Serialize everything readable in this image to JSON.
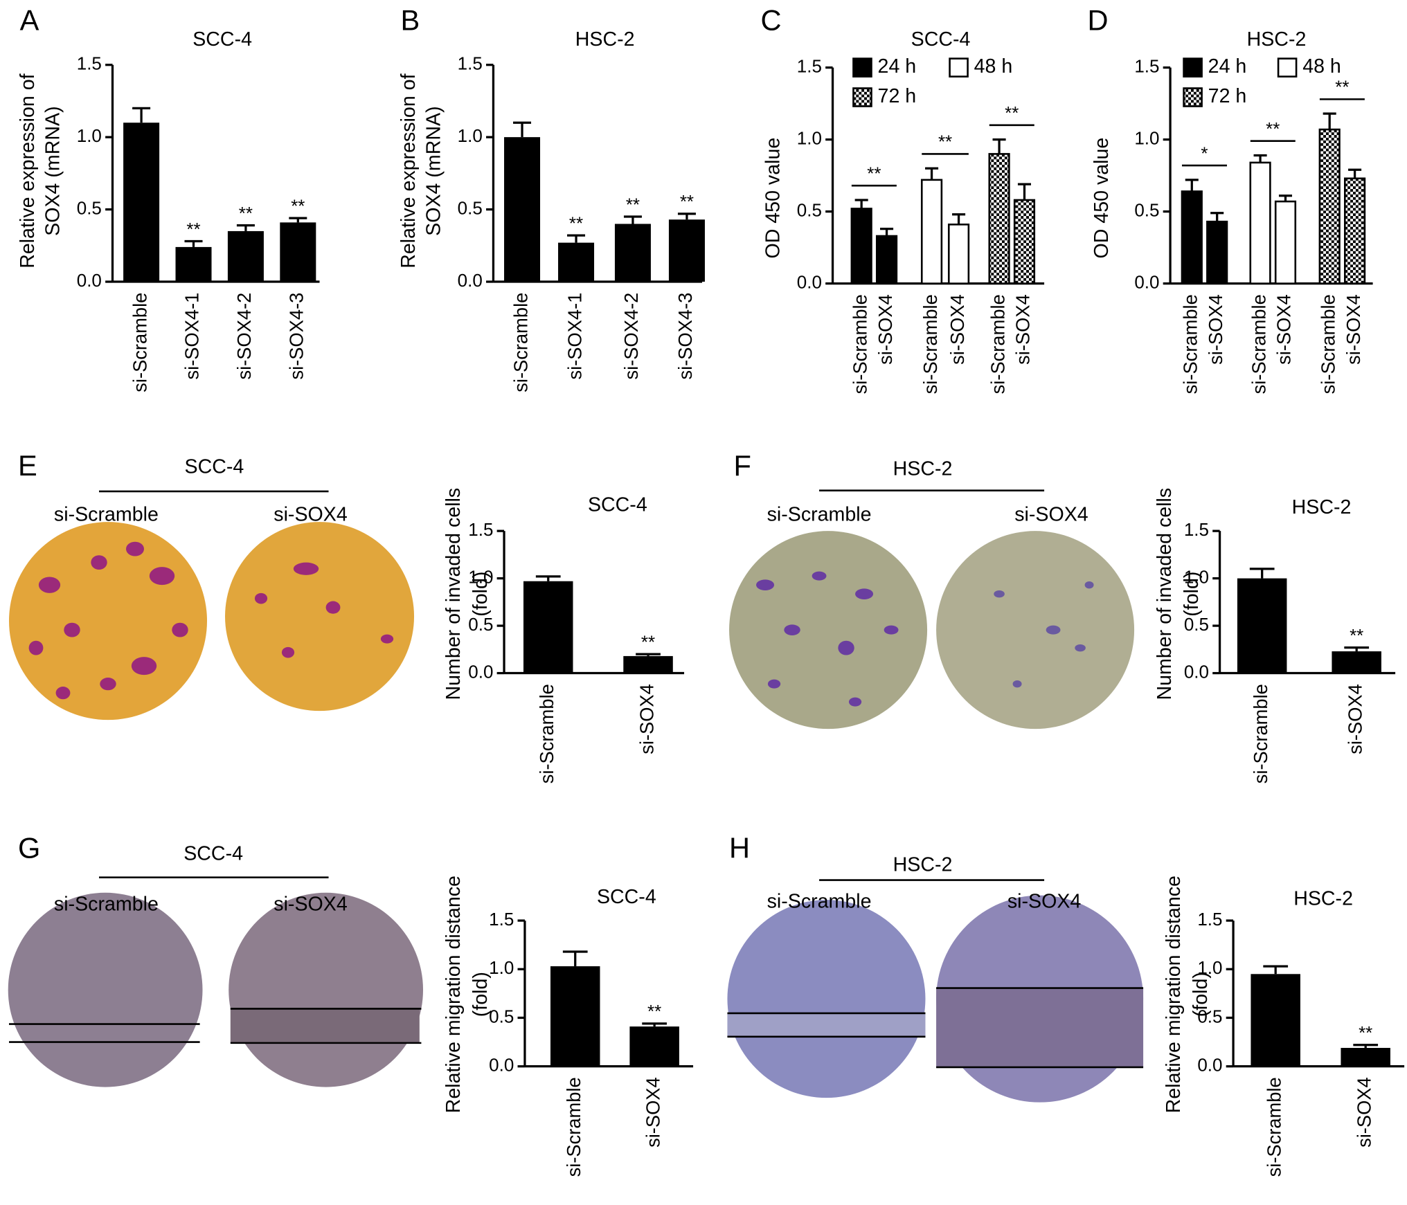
{
  "chart_data": [
    {
      "panel": "A",
      "type": "bar",
      "title": "SCC-4",
      "ylabel": [
        "Relative expression of",
        "SOX4 (mRNA)"
      ],
      "categories": [
        "si-Scramble",
        "si-SOX4-1",
        "si-SOX4-2",
        "si-SOX4-3"
      ],
      "values": [
        1.1,
        0.24,
        0.35,
        0.41
      ],
      "errors": [
        0.1,
        0.04,
        0.04,
        0.03
      ],
      "annotations": [
        null,
        "**",
        "**",
        "**"
      ],
      "color": "#000000",
      "ylim": [
        0,
        1.5
      ],
      "yticks": [
        {
          "value": 0,
          "label": "0.0"
        },
        {
          "value": 0.5,
          "label": "0.5"
        },
        {
          "value": 1,
          "label": "1.0"
        },
        {
          "value": 1.5,
          "label": "1.5"
        }
      ]
    },
    {
      "panel": "B",
      "type": "bar",
      "title": "HSC-2",
      "ylabel": [
        "Relative expression of",
        "SOX4 (mRNA)"
      ],
      "categories": [
        "si-Scramble",
        "si-SOX4-1",
        "si-SOX4-2",
        "si-SOX4-3"
      ],
      "values": [
        1.0,
        0.27,
        0.4,
        0.43
      ],
      "errors": [
        0.1,
        0.05,
        0.05,
        0.04
      ],
      "annotations": [
        null,
        "**",
        "**",
        "**"
      ],
      "color": "#000000",
      "ylim": [
        0,
        1.5
      ],
      "yticks": [
        {
          "value": 0,
          "label": "0.0"
        },
        {
          "value": 0.5,
          "label": "0.5"
        },
        {
          "value": 1,
          "label": "1.0"
        },
        {
          "value": 1.5,
          "label": "1.5"
        }
      ]
    },
    {
      "panel": "C",
      "type": "grouped_bar",
      "title": "SCC-4",
      "ylabel": [
        "OD 450 value"
      ],
      "categories": [
        "si-Scramble",
        "si-SOX4"
      ],
      "series": [
        {
          "name": "24 h",
          "color": "#000000",
          "values": [
            0.52,
            0.33
          ],
          "errors": [
            0.06,
            0.05
          ]
        },
        {
          "name": "48 h",
          "color": "#ffffff",
          "values": [
            0.72,
            0.41
          ],
          "errors": [
            0.08,
            0.07
          ]
        },
        {
          "name": "72 h",
          "color": "#000000",
          "pattern": "checker",
          "values": [
            0.9,
            0.58
          ],
          "errors": [
            0.1,
            0.11
          ]
        }
      ],
      "significance": [
        "**",
        "**",
        "**"
      ],
      "ylim": [
        0,
        1.5
      ],
      "yticks": [
        {
          "value": 0,
          "label": "0.0"
        },
        {
          "value": 0.5,
          "label": "0.5"
        },
        {
          "value": 1,
          "label": "1.0"
        },
        {
          "value": 1.5,
          "label": "1.5"
        }
      ]
    },
    {
      "panel": "D",
      "type": "grouped_bar",
      "title": "HSC-2",
      "ylabel": [
        "OD 450 value"
      ],
      "categories": [
        "si-Scramble",
        "si-SOX4"
      ],
      "series": [
        {
          "name": "24 h",
          "color": "#000000",
          "values": [
            0.64,
            0.43
          ],
          "errors": [
            0.08,
            0.06
          ]
        },
        {
          "name": "48 h",
          "color": "#ffffff",
          "values": [
            0.84,
            0.57
          ],
          "errors": [
            0.05,
            0.04
          ]
        },
        {
          "name": "72 h",
          "color": "#000000",
          "pattern": "checker",
          "values": [
            1.07,
            0.73
          ],
          "errors": [
            0.11,
            0.06
          ]
        }
      ],
      "significance": [
        "*",
        "**",
        "**"
      ],
      "ylim": [
        0,
        1.5
      ],
      "yticks": [
        {
          "value": 0,
          "label": "0.0"
        },
        {
          "value": 0.5,
          "label": "0.5"
        },
        {
          "value": 1,
          "label": "1.0"
        },
        {
          "value": 1.5,
          "label": "1.5"
        }
      ]
    },
    {
      "panel": "E",
      "type": "bar",
      "title": "SCC-4",
      "ylabel": [
        "Number of invaded cells",
        "(fold)"
      ],
      "categories": [
        "si-Scramble",
        "si-SOX4"
      ],
      "values": [
        0.97,
        0.18
      ],
      "errors": [
        0.05,
        0.02
      ],
      "annotations": [
        null,
        "**"
      ],
      "color": "#000000",
      "ylim": [
        0,
        1.5
      ],
      "yticks": [
        {
          "value": 0,
          "label": "0.0"
        },
        {
          "value": 0.5,
          "label": "0.5"
        },
        {
          "value": 1,
          "label": "1.0"
        },
        {
          "value": 1.5,
          "label": "1.5"
        }
      ],
      "images": {
        "title": "SCC-4",
        "labels": [
          "si-Scramble",
          "si-SOX4"
        ]
      }
    },
    {
      "panel": "F",
      "type": "bar",
      "title": "HSC-2",
      "ylabel": [
        "Number of invaded cells",
        "(fold)"
      ],
      "categories": [
        "si-Scramble",
        "si-SOX4"
      ],
      "values": [
        1.0,
        0.23
      ],
      "errors": [
        0.1,
        0.04
      ],
      "annotations": [
        null,
        "**"
      ],
      "color": "#000000",
      "ylim": [
        0,
        1.5
      ],
      "yticks": [
        {
          "value": 0,
          "label": "0.0"
        },
        {
          "value": 0.5,
          "label": "0.5"
        },
        {
          "value": 1,
          "label": "1.0"
        },
        {
          "value": 1.5,
          "label": "1.5"
        }
      ],
      "images": {
        "title": "HSC-2",
        "labels": [
          "si-Scramble",
          "si-SOX4"
        ]
      }
    },
    {
      "panel": "G",
      "type": "bar",
      "title": "SCC-4",
      "ylabel": [
        "Relative migration distance",
        "(fold)"
      ],
      "categories": [
        "si-Scramble",
        "si-SOX4"
      ],
      "values": [
        1.03,
        0.41
      ],
      "errors": [
        0.15,
        0.03
      ],
      "annotations": [
        null,
        "**"
      ],
      "color": "#000000",
      "ylim": [
        0,
        1.5
      ],
      "yticks": [
        {
          "value": 0,
          "label": "0.0"
        },
        {
          "value": 0.5,
          "label": "0.5"
        },
        {
          "value": 1,
          "label": "1.0"
        },
        {
          "value": 1.5,
          "label": "1.5"
        }
      ],
      "images": {
        "title": "SCC-4",
        "labels": [
          "si-Scramble",
          "si-SOX4"
        ]
      }
    },
    {
      "panel": "H",
      "type": "bar",
      "title": "HSC-2",
      "ylabel": [
        "Relative migration distance",
        "(fold)"
      ],
      "categories": [
        "si-Scramble",
        "si-SOX4"
      ],
      "values": [
        0.95,
        0.19
      ],
      "errors": [
        0.08,
        0.03
      ],
      "annotations": [
        null,
        "**"
      ],
      "color": "#000000",
      "ylim": [
        0,
        1.5
      ],
      "yticks": [
        {
          "value": 0,
          "label": "0.0"
        },
        {
          "value": 0.5,
          "label": "0.5"
        },
        {
          "value": 1,
          "label": "1.0"
        },
        {
          "value": 1.5,
          "label": "1.5"
        }
      ],
      "images": {
        "title": "HSC-2",
        "labels": [
          "si-Scramble",
          "si-SOX4"
        ]
      }
    }
  ]
}
